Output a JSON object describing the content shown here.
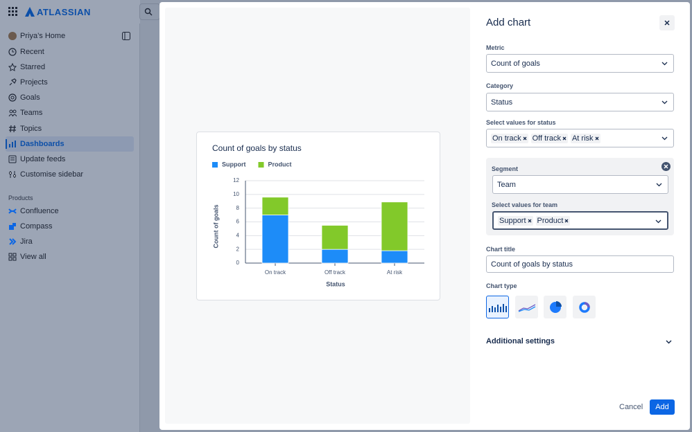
{
  "header": {
    "logo": "ATLASSIAN"
  },
  "sidebar": {
    "items": [
      "Priya’s Home",
      "Recent",
      "Starred",
      "Projects",
      "Goals",
      "Teams",
      "Topics",
      "Dashboards",
      "Update feeds",
      "Customise sidebar"
    ],
    "products_heading": "Products",
    "products": [
      "Confluence",
      "Compass",
      "Jira",
      "View all"
    ]
  },
  "modal": {
    "title": "Add chart",
    "metric": {
      "label": "Metric",
      "value": "Count of goals"
    },
    "category": {
      "label": "Category",
      "value": "Status"
    },
    "status_values": {
      "label": "Select values for status",
      "tags": [
        "On track",
        "Off track",
        "At risk"
      ]
    },
    "segment": {
      "label": "Segment",
      "value": "Team"
    },
    "team_values": {
      "label": "Select values for team",
      "tags": [
        "Support",
        "Product"
      ]
    },
    "chart_title": {
      "label": "Chart title",
      "value": "Count of goals by status"
    },
    "chart_type": {
      "label": "Chart type"
    },
    "additional_settings": "Additional settings",
    "cancel": "Cancel",
    "add": "Add"
  },
  "chart_data": {
    "type": "stacked_bar",
    "title": "Count of goals by status",
    "categories": [
      "On track",
      "Off track",
      "At risk"
    ],
    "series": [
      {
        "name": "Support",
        "color": "#1d8cf8",
        "values": [
          7,
          2,
          1.8
        ]
      },
      {
        "name": "Product",
        "color": "#82c92a",
        "values": [
          2.6,
          3.5,
          7.1
        ]
      }
    ],
    "ylim": [
      0,
      12
    ],
    "yticks": [
      0,
      2,
      4,
      6,
      8,
      10,
      12
    ],
    "grid": true,
    "x_label": "Status",
    "y_label": "Count of goals"
  }
}
